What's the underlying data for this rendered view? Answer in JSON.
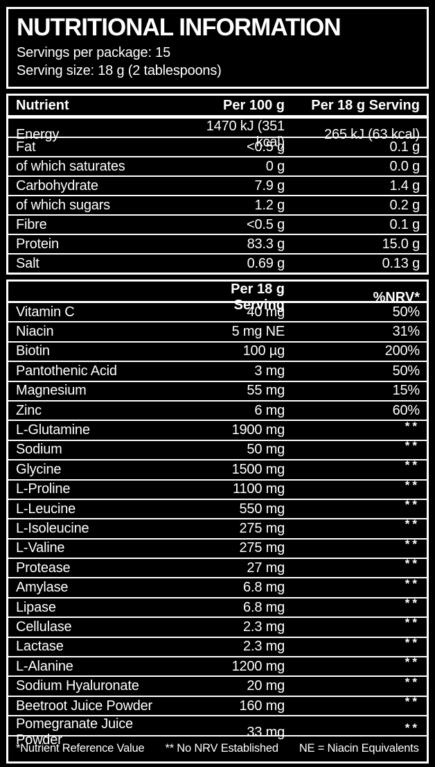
{
  "label": {
    "title": "NUTRITIONAL INFORMATION",
    "servings_per_package": "Servings per package: 15",
    "serving_size": "Serving size: 18 g (2 tablespoons)"
  },
  "table1": {
    "headers": [
      "Nutrient",
      "Per 100 g",
      "Per 18 g Serving"
    ],
    "rows": [
      {
        "name": "Energy",
        "per_100g": "1470 kJ (351 kcal)",
        "per_serving": "265 kJ (63 kcal)"
      },
      {
        "name": "Fat",
        "per_100g": "<0.5 g",
        "per_serving": "0.1 g"
      },
      {
        "name": "of which saturates",
        "per_100g": "0 g",
        "per_serving": "0.0 g"
      },
      {
        "name": "Carbohydrate",
        "per_100g": "7.9 g",
        "per_serving": "1.4 g"
      },
      {
        "name": "of which sugars",
        "per_100g": "1.2 g",
        "per_serving": "0.2 g"
      },
      {
        "name": "Fibre",
        "per_100g": "<0.5 g",
        "per_serving": "0.1 g"
      },
      {
        "name": "Protein",
        "per_100g": "83.3 g",
        "per_serving": "15.0 g"
      },
      {
        "name": "Salt",
        "per_100g": "0.69 g",
        "per_serving": "0.13 g"
      }
    ]
  },
  "table2": {
    "headers": [
      "",
      "Per 18 g Serving",
      "%NRV*"
    ],
    "rows": [
      {
        "name": "Vitamin C",
        "amount": "40 mg",
        "nrv": "50%"
      },
      {
        "name": "Niacin",
        "amount": "5 mg NE",
        "nrv": "31%"
      },
      {
        "name": "Biotin",
        "amount": "100 µg",
        "nrv": "200%"
      },
      {
        "name": "Pantothenic Acid",
        "amount": "3 mg",
        "nrv": "50%"
      },
      {
        "name": "Magnesium",
        "amount": "55 mg",
        "nrv": "15%"
      },
      {
        "name": "Zinc",
        "amount": "6 mg",
        "nrv": "60%"
      },
      {
        "name": "L-Glutamine",
        "amount": "1900 mg",
        "nrv": "**"
      },
      {
        "name": "Sodium",
        "amount": "50 mg",
        "nrv": "**"
      },
      {
        "name": "Glycine",
        "amount": "1500 mg",
        "nrv": "**"
      },
      {
        "name": "L-Proline",
        "amount": "1100 mg",
        "nrv": "**"
      },
      {
        "name": "L-Leucine",
        "amount": "550 mg",
        "nrv": "**"
      },
      {
        "name": "L-Isoleucine",
        "amount": "275 mg",
        "nrv": "**"
      },
      {
        "name": "L-Valine",
        "amount": "275 mg",
        "nrv": "**"
      },
      {
        "name": "Protease",
        "amount": "27 mg",
        "nrv": "**"
      },
      {
        "name": "Amylase",
        "amount": "6.8 mg",
        "nrv": "**"
      },
      {
        "name": "Lipase",
        "amount": "6.8 mg",
        "nrv": "**"
      },
      {
        "name": "Cellulase",
        "amount": "2.3 mg",
        "nrv": "**"
      },
      {
        "name": "Lactase",
        "amount": "2.3 mg",
        "nrv": "**"
      },
      {
        "name": "L-Alanine",
        "amount": "1200 mg",
        "nrv": "**"
      },
      {
        "name": "Sodium Hyaluronate",
        "amount": "20 mg",
        "nrv": "**"
      },
      {
        "name": "Beetroot Juice Powder",
        "amount": "160 mg",
        "nrv": "**"
      },
      {
        "name": "Pomegranate Juice Powder",
        "amount": "33 mg",
        "nrv": "**"
      }
    ]
  },
  "footnotes": [
    "*Nutrient Reference Value",
    "** No NRV Established",
    "NE = Niacin Equivalents"
  ],
  "colors": {
    "background": "#000000",
    "text": "#ffffff",
    "border": "#ffffff"
  }
}
